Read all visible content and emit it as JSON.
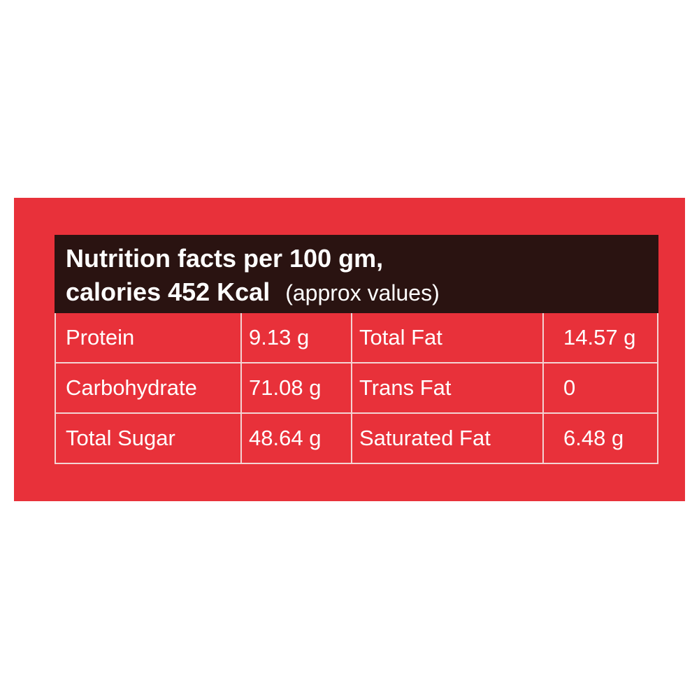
{
  "colors": {
    "panel": "#e8313a",
    "header": "#2a1311",
    "text": "#ffffff"
  },
  "header": {
    "line1": "Nutrition facts per 100 gm,",
    "line2": "calories 452 Kcal",
    "approx": "(approx values)"
  },
  "rows": [
    {
      "label1": "Protein",
      "value1": "9.13 g",
      "label2": "Total Fat",
      "value2": "14.57 g"
    },
    {
      "label1": "Carbohydrate",
      "value1": "71.08 g",
      "label2": "Trans Fat",
      "value2": "0"
    },
    {
      "label1": "Total Sugar",
      "value1": "48.64 g",
      "label2": "Saturated Fat",
      "value2": "6.48 g"
    }
  ]
}
